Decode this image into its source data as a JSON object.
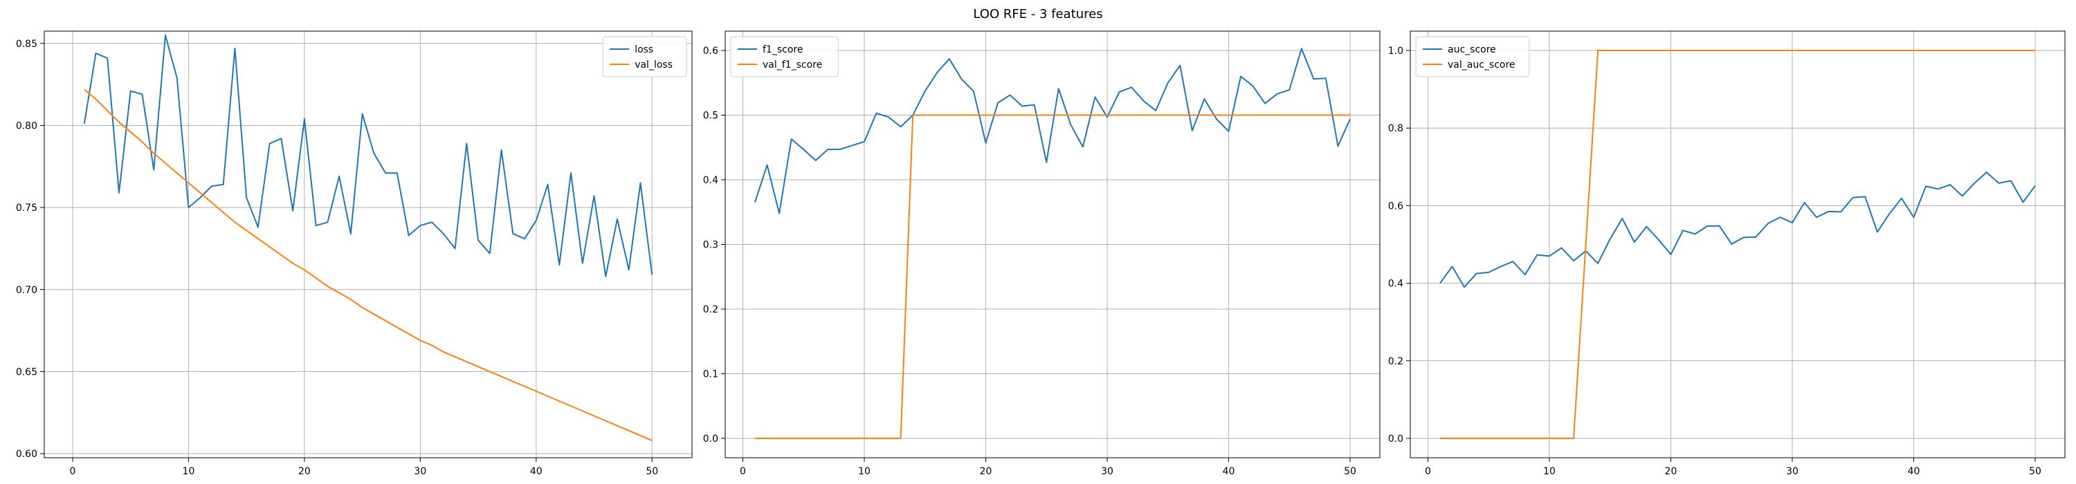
{
  "figure": {
    "title": "LOO RFE - 3 features"
  },
  "colors": {
    "blue": "#1f77b4",
    "orange": "#ff7f0e",
    "grid": "#b0b0b0"
  },
  "chart_data": [
    {
      "type": "line",
      "grid": true,
      "legend": "top-right",
      "xlim": [
        -2.45,
        53.45
      ],
      "ylim": [
        0.5975,
        0.8575
      ],
      "xticks": [
        0,
        10,
        20,
        30,
        40,
        50
      ],
      "yticks": [
        0.6,
        0.65,
        0.7,
        0.75,
        0.8,
        0.85
      ],
      "x": [
        1,
        2,
        3,
        4,
        5,
        6,
        7,
        8,
        9,
        10,
        11,
        12,
        13,
        14,
        15,
        16,
        17,
        18,
        19,
        20,
        21,
        22,
        23,
        24,
        25,
        26,
        27,
        28,
        29,
        30,
        31,
        32,
        33,
        34,
        35,
        36,
        37,
        38,
        39,
        40,
        41,
        42,
        43,
        44,
        45,
        46,
        47,
        48,
        49,
        50
      ],
      "series": [
        {
          "name": "loss",
          "color": "#1f77b4",
          "values": [
            0.801,
            0.844,
            0.841,
            0.759,
            0.821,
            0.819,
            0.773,
            0.855,
            0.829,
            0.75,
            0.756,
            0.763,
            0.764,
            0.847,
            0.756,
            0.738,
            0.789,
            0.792,
            0.748,
            0.804,
            0.739,
            0.741,
            0.769,
            0.734,
            0.807,
            0.783,
            0.771,
            0.771,
            0.733,
            0.739,
            0.741,
            0.734,
            0.725,
            0.789,
            0.73,
            0.722,
            0.785,
            0.734,
            0.731,
            0.742,
            0.764,
            0.715,
            0.771,
            0.716,
            0.757,
            0.708,
            0.743,
            0.712,
            0.765,
            0.709
          ]
        },
        {
          "name": "val_loss",
          "color": "#ff7f0e",
          "values": [
            0.822,
            0.816,
            0.809,
            0.802,
            0.796,
            0.79,
            0.783,
            0.777,
            0.771,
            0.765,
            0.759,
            0.753,
            0.747,
            0.741,
            0.736,
            0.731,
            0.726,
            0.721,
            0.716,
            0.712,
            0.707,
            0.702,
            0.698,
            0.694,
            0.689,
            0.685,
            0.681,
            0.677,
            0.673,
            0.669,
            0.666,
            0.662,
            0.659,
            0.656,
            0.653,
            0.65,
            0.647,
            0.644,
            0.641,
            0.638,
            0.635,
            0.632,
            0.629,
            0.626,
            0.623,
            0.62,
            0.617,
            0.614,
            0.611,
            0.608
          ]
        }
      ]
    },
    {
      "type": "line",
      "grid": true,
      "legend": "top-left",
      "xlim": [
        -1.45,
        52.45
      ],
      "ylim": [
        -0.03,
        0.63
      ],
      "xticks": [
        0,
        10,
        20,
        30,
        40,
        50
      ],
      "yticks": [
        0.0,
        0.1,
        0.2,
        0.3,
        0.4,
        0.5,
        0.6
      ],
      "x": [
        1,
        2,
        3,
        4,
        5,
        6,
        7,
        8,
        9,
        10,
        11,
        12,
        13,
        14,
        15,
        16,
        17,
        18,
        19,
        20,
        21,
        22,
        23,
        24,
        25,
        26,
        27,
        28,
        29,
        30,
        31,
        32,
        33,
        34,
        35,
        36,
        37,
        38,
        39,
        40,
        41,
        42,
        43,
        44,
        45,
        46,
        47,
        48,
        49,
        50
      ],
      "series": [
        {
          "name": "f1_score",
          "color": "#1f77b4",
          "values": [
            0.365,
            0.423,
            0.348,
            0.463,
            0.447,
            0.43,
            0.447,
            0.447,
            0.453,
            0.459,
            0.503,
            0.497,
            0.482,
            0.5,
            0.537,
            0.566,
            0.587,
            0.556,
            0.537,
            0.457,
            0.519,
            0.531,
            0.514,
            0.516,
            0.427,
            0.541,
            0.485,
            0.451,
            0.528,
            0.497,
            0.536,
            0.543,
            0.522,
            0.507,
            0.55,
            0.577,
            0.476,
            0.525,
            0.494,
            0.475,
            0.56,
            0.545,
            0.518,
            0.533,
            0.539,
            0.603,
            0.556,
            0.557,
            0.452,
            0.494
          ]
        },
        {
          "name": "val_f1_score",
          "color": "#ff7f0e",
          "values": [
            0.0,
            0.0,
            0.0,
            0.0,
            0.0,
            0.0,
            0.0,
            0.0,
            0.0,
            0.0,
            0.0,
            0.0,
            0.0,
            0.5,
            0.5,
            0.5,
            0.5,
            0.5,
            0.5,
            0.5,
            0.5,
            0.5,
            0.5,
            0.5,
            0.5,
            0.5,
            0.5,
            0.5,
            0.5,
            0.5,
            0.5,
            0.5,
            0.5,
            0.5,
            0.5,
            0.5,
            0.5,
            0.5,
            0.5,
            0.5,
            0.5,
            0.5,
            0.5,
            0.5,
            0.5,
            0.5,
            0.5,
            0.5,
            0.5,
            0.5
          ]
        }
      ]
    },
    {
      "type": "line",
      "grid": true,
      "legend": "top-left",
      "xlim": [
        -1.45,
        52.45
      ],
      "ylim": [
        -0.05,
        1.05
      ],
      "xticks": [
        0,
        10,
        20,
        30,
        40,
        50
      ],
      "yticks": [
        0.0,
        0.2,
        0.4,
        0.6,
        0.8,
        1.0
      ],
      "x": [
        1,
        2,
        3,
        4,
        5,
        6,
        7,
        8,
        9,
        10,
        11,
        12,
        13,
        14,
        15,
        16,
        17,
        18,
        19,
        20,
        21,
        22,
        23,
        24,
        25,
        26,
        27,
        28,
        29,
        30,
        31,
        32,
        33,
        34,
        35,
        36,
        37,
        38,
        39,
        40,
        41,
        42,
        43,
        44,
        45,
        46,
        47,
        48,
        49,
        50
      ],
      "series": [
        {
          "name": "auc_score",
          "color": "#1f77b4",
          "values": [
            0.4,
            0.443,
            0.39,
            0.425,
            0.428,
            0.443,
            0.456,
            0.422,
            0.473,
            0.47,
            0.491,
            0.458,
            0.483,
            0.451,
            0.514,
            0.567,
            0.506,
            0.546,
            0.512,
            0.474,
            0.536,
            0.527,
            0.547,
            0.548,
            0.501,
            0.518,
            0.519,
            0.554,
            0.57,
            0.556,
            0.608,
            0.57,
            0.585,
            0.584,
            0.621,
            0.623,
            0.532,
            0.579,
            0.619,
            0.57,
            0.65,
            0.643,
            0.654,
            0.625,
            0.658,
            0.686,
            0.658,
            0.664,
            0.609,
            0.651
          ]
        },
        {
          "name": "val_auc_score",
          "color": "#ff7f0e",
          "values": [
            0.0,
            0.0,
            0.0,
            0.0,
            0.0,
            0.0,
            0.0,
            0.0,
            0.0,
            0.0,
            0.0,
            0.0,
            0.5,
            1.0,
            1.0,
            1.0,
            1.0,
            1.0,
            1.0,
            1.0,
            1.0,
            1.0,
            1.0,
            1.0,
            1.0,
            1.0,
            1.0,
            1.0,
            1.0,
            1.0,
            1.0,
            1.0,
            1.0,
            1.0,
            1.0,
            1.0,
            1.0,
            1.0,
            1.0,
            1.0,
            1.0,
            1.0,
            1.0,
            1.0,
            1.0,
            1.0,
            1.0,
            1.0,
            1.0,
            1.0
          ]
        }
      ]
    }
  ]
}
